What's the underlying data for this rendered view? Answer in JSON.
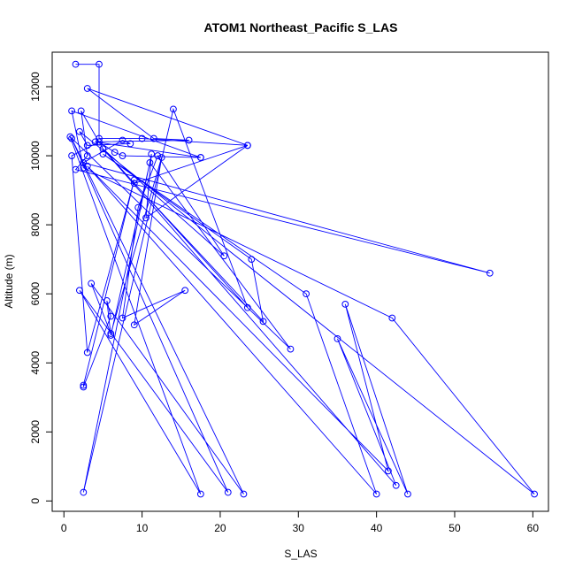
{
  "chart_data": {
    "type": "line",
    "title": "ATOM1 Northeast_Pacific S_LAS",
    "xlabel": "S_LAS",
    "ylabel": "Altitude (m)",
    "xlim": [
      -1.5,
      62
    ],
    "ylim": [
      -300,
      13000
    ],
    "x_ticks": [
      0,
      10,
      20,
      30,
      40,
      50,
      60
    ],
    "y_ticks": [
      0,
      2000,
      4000,
      6000,
      8000,
      10000,
      12000
    ],
    "grid": false,
    "legend": "none",
    "colors": {
      "series": "#0000ff",
      "axes": "#000000"
    },
    "series": [
      {
        "points": [
          [
            1.5,
            12650
          ],
          [
            4.5,
            12650
          ],
          [
            4.5,
            10500
          ],
          [
            10.0,
            10500
          ],
          [
            23.5,
            10300
          ],
          [
            3.0,
            11950
          ],
          [
            11.5,
            10500
          ],
          [
            16.0,
            10450
          ],
          [
            4.0,
            10400
          ],
          [
            17.5,
            9950
          ],
          [
            1.0,
            11300
          ],
          [
            2.5,
            9650
          ],
          [
            42.0,
            5300
          ],
          [
            60.2,
            200
          ],
          [
            2.0,
            10700
          ],
          [
            3.0,
            10300
          ],
          [
            8.5,
            10350
          ],
          [
            7.5,
            10450
          ],
          [
            2.5,
            9800
          ],
          [
            54.5,
            6600
          ],
          [
            1.5,
            9600
          ],
          [
            3.0,
            10000
          ],
          [
            2.2,
            11300
          ],
          [
            5.0,
            10200
          ],
          [
            23.5,
            5600
          ],
          [
            14.0,
            11350
          ],
          [
            2.5,
            250
          ],
          [
            11.2,
            10050
          ],
          [
            10.5,
            8200
          ],
          [
            23.5,
            10300
          ],
          [
            9.0,
            9200
          ],
          [
            25.5,
            5200
          ],
          [
            24.0,
            7000
          ],
          [
            5.0,
            10050
          ],
          [
            31.0,
            6000
          ],
          [
            40.0,
            200
          ],
          [
            3.0,
            9700
          ],
          [
            41.5,
            870
          ],
          [
            36.0,
            5700
          ],
          [
            44.0,
            200
          ],
          [
            35.0,
            4700
          ],
          [
            42.5,
            450
          ],
          [
            5.0,
            10200
          ],
          [
            20.5,
            7100
          ],
          [
            12.0,
            10000
          ],
          [
            9.5,
            8500
          ],
          [
            7.5,
            5300
          ],
          [
            15.5,
            6100
          ],
          [
            9.0,
            5100
          ],
          [
            12.5,
            9950
          ],
          [
            6.0,
            4850
          ],
          [
            3.5,
            6300
          ],
          [
            23.0,
            200
          ],
          [
            1.0,
            10500
          ],
          [
            21.0,
            250
          ],
          [
            2.0,
            6100
          ],
          [
            17.5,
            200
          ],
          [
            0.8,
            10550
          ],
          [
            29.0,
            4400
          ],
          [
            11.0,
            9800
          ],
          [
            6.0,
            4800
          ],
          [
            5.5,
            5800
          ],
          [
            6.0,
            5350
          ],
          [
            2.5,
            3300
          ],
          [
            2.5,
            3350
          ],
          [
            9.0,
            9300
          ],
          [
            3.0,
            4300
          ],
          [
            1.0,
            10000
          ],
          [
            4.5,
            10400
          ],
          [
            6.5,
            10100
          ],
          [
            7.5,
            10000
          ],
          [
            17.5,
            9950
          ]
        ]
      }
    ]
  }
}
